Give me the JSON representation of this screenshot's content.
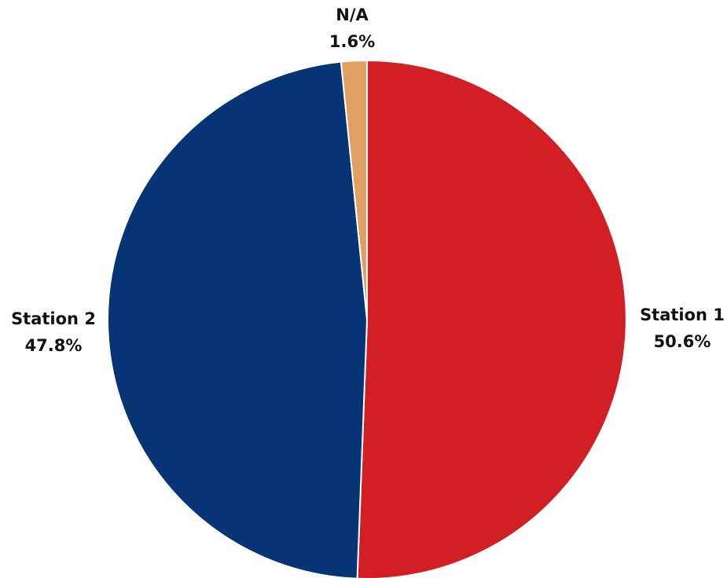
{
  "chart_data": {
    "type": "pie",
    "title": "",
    "slices": [
      {
        "label": "Station 1",
        "value": 50.6,
        "display": "50.6%",
        "color": "#D21F26"
      },
      {
        "label": "Station 2",
        "value": 47.8,
        "display": "47.8%",
        "color": "#073475"
      },
      {
        "label": "N/A",
        "value": 1.6,
        "display": "1.6%",
        "color": "#E0A064"
      }
    ],
    "start_angle": "12 o'clock",
    "direction": "clockwise",
    "legend": "none",
    "labels": "outside, label with percentage"
  }
}
